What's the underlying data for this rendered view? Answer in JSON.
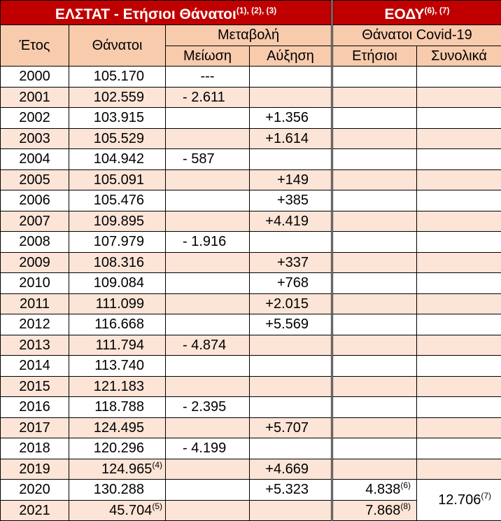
{
  "header": {
    "elstat_title": "ΕΛΣΤΑΤ - Ετήσιοι Θάνατοι",
    "elstat_notes": "(1), (2), (3)",
    "eody_title": "ΕΟΔΥ",
    "eody_notes": "(6), (7)"
  },
  "columns": {
    "year": "Έτος",
    "deaths": "Θάνατοι",
    "change": "Μεταβολή",
    "decrease": "Μείωση",
    "increase": "Αύξηση",
    "covid_deaths": "Θάνατοι Covid-19",
    "annual": "Ετήσιοι",
    "cumulative": "Συνολικά"
  },
  "rows": [
    {
      "year": "2000",
      "deaths": "105.170",
      "decrease": "---",
      "increase": ""
    },
    {
      "year": "2001",
      "deaths": "102.559",
      "decrease": "- 2.611",
      "increase": ""
    },
    {
      "year": "2002",
      "deaths": "103.915",
      "decrease": "",
      "increase": "+1.356"
    },
    {
      "year": "2003",
      "deaths": "105.529",
      "decrease": "",
      "increase": "+1.614"
    },
    {
      "year": "2004",
      "deaths": "104.942",
      "decrease": "- 587",
      "increase": ""
    },
    {
      "year": "2005",
      "deaths": "105.091",
      "decrease": "",
      "increase": "+149"
    },
    {
      "year": "2006",
      "deaths": "105.476",
      "decrease": "",
      "increase": "+385"
    },
    {
      "year": "2007",
      "deaths": "109.895",
      "decrease": "",
      "increase": "+4.419"
    },
    {
      "year": "2008",
      "deaths": "107.979",
      "decrease": "- 1.916",
      "increase": ""
    },
    {
      "year": "2009",
      "deaths": "108.316",
      "decrease": "",
      "increase": "+337"
    },
    {
      "year": "2010",
      "deaths": "109.084",
      "decrease": "",
      "increase": "+768"
    },
    {
      "year": "2011",
      "deaths": "111.099",
      "decrease": "",
      "increase": "+2.015"
    },
    {
      "year": "2012",
      "deaths": "116.668",
      "decrease": "",
      "increase": "+5.569"
    },
    {
      "year": "2013",
      "deaths": "111.794",
      "decrease": "- 4.874",
      "increase": ""
    },
    {
      "year": "2014",
      "deaths": "113.740",
      "decrease": "",
      "increase": ""
    },
    {
      "year": "2015",
      "deaths": "121.183",
      "decrease": "",
      "increase": ""
    },
    {
      "year": "2016",
      "deaths": "118.788",
      "decrease": "- 2.395",
      "increase": ""
    },
    {
      "year": "2017",
      "deaths": "124.495",
      "decrease": "",
      "increase": "+5.707"
    },
    {
      "year": "2018",
      "deaths": "120.296",
      "decrease": "- 4.199",
      "increase": ""
    },
    {
      "year": "2019",
      "deaths": "124.965",
      "deaths_note": "(4)",
      "decrease": "",
      "increase": "+4.669"
    },
    {
      "year": "2020",
      "deaths": "130.288",
      "decrease": "",
      "increase": "+5.323",
      "covid_annual": "4.838",
      "covid_annual_note": "(6)"
    },
    {
      "year": "2021",
      "deaths": "45.704",
      "deaths_note": "(5)",
      "decrease": "",
      "increase": "",
      "covid_annual": "7.868",
      "covid_annual_note": "(8)"
    }
  ],
  "covid_cumulative": {
    "value": "12.706",
    "note": "(7)"
  },
  "colors": {
    "header_red": "#c00000",
    "header_peach": "#f8cbad",
    "row_stripe": "#fce4d6"
  }
}
